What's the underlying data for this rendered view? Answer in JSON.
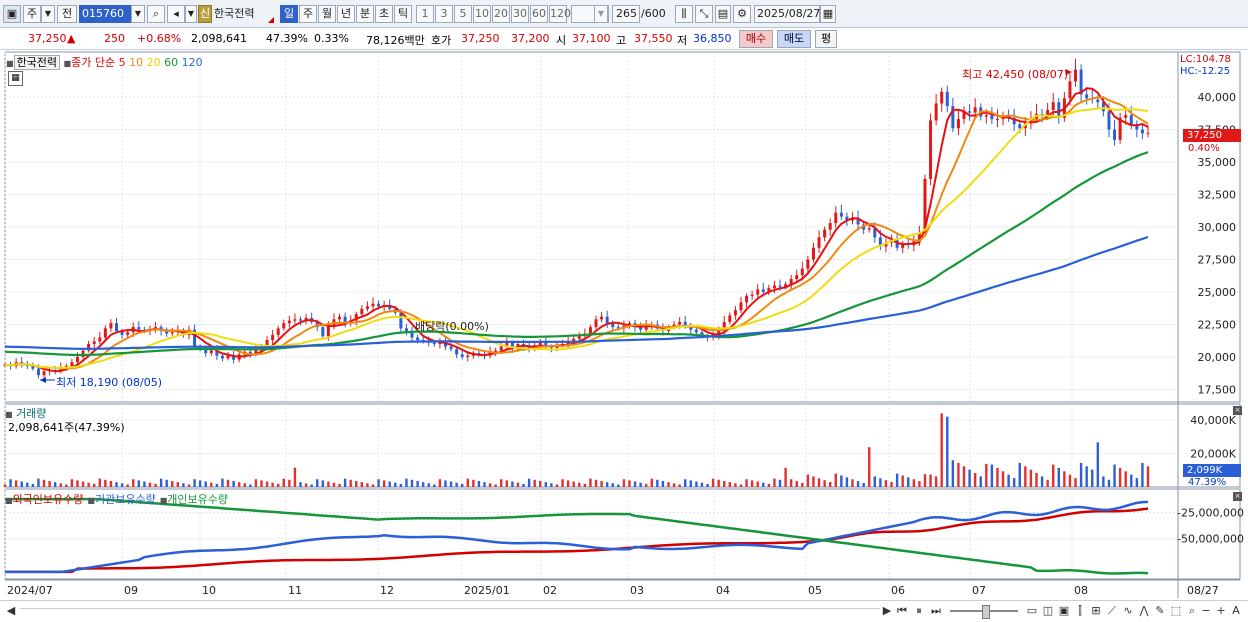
{
  "toolbar": {
    "period_main": "주",
    "market": "전",
    "code": "015760",
    "name_badge": "신",
    "name": "한국전력",
    "periods": [
      "일",
      "주",
      "월",
      "년",
      "분",
      "초",
      "틱"
    ],
    "selected_period": "일",
    "intervals": [
      "1",
      "3",
      "5",
      "10",
      "20",
      "30",
      "60",
      "120"
    ],
    "count": "265",
    "count_max": "/600",
    "date": "2025/08/27"
  },
  "quote": {
    "price": "37,250",
    "direction": "▲",
    "change": "250",
    "change_pct": "+0.68%",
    "volume": "2,098,641",
    "turnover_pct": "47.39%",
    "ratio": "0.33%",
    "amount": "78,126백만",
    "bid_label": "호가",
    "bid": "37,250",
    "ask": "37,200",
    "open_label": "시",
    "open": "37,100",
    "high_label": "고",
    "high": "37,550",
    "low_label": "저",
    "low": "36,850",
    "buy_label": "매수",
    "sell_label": "매도",
    "eval_label": "평"
  },
  "price_panel": {
    "name": "한국전력",
    "series_label": "종가 단순",
    "ma_labels": [
      {
        "label": "5",
        "color": "#e81010"
      },
      {
        "label": "10",
        "color": "#ee8a10"
      },
      {
        "label": "20",
        "color": "#e6d400"
      },
      {
        "label": "60",
        "color": "#16963a"
      },
      {
        "label": "120",
        "color": "#2a6cd6"
      }
    ],
    "lc": "LC:104.78",
    "hc": "HC:-12.25",
    "y_ticks": [
      "40,000",
      "37,500",
      "35,000",
      "32,500",
      "30,000",
      "27,500",
      "25,000",
      "22,500",
      "20,000",
      "17,500"
    ],
    "y_values": [
      40000,
      37500,
      35000,
      32500,
      30000,
      27500,
      25000,
      22500,
      20000,
      17500
    ],
    "current_label": "37,250",
    "current_value": 37250,
    "current_pct": "0.40%",
    "high_annotation": "최고 42,450 (08/07)",
    "low_annotation": "최저 18,190 (08/05)",
    "dividend_annotation": "배당락(0.00%)"
  },
  "volume_panel": {
    "title": "거래량",
    "value_label": "2,098,641주(47.39%)",
    "y_ticks": [
      "40,000K",
      "20,000K"
    ],
    "y_values": [
      40000,
      20000
    ],
    "current_label": "2,099K",
    "current_value": 2099,
    "current_pct": "47.39%"
  },
  "holdings_panel": {
    "legend": [
      {
        "label": "외국인보유수량",
        "color": "#d40000"
      },
      {
        "label": "기관보유수량",
        "color": "#2a5fd6"
      },
      {
        "label": "개인보유수량",
        "color": "#16963a"
      }
    ],
    "y_ticks": [
      "-25,000,000",
      "-50,000,000"
    ],
    "y_values": [
      -25000000,
      -50000000
    ]
  },
  "x_axis": {
    "labels": [
      "2024/07",
      "09",
      "10",
      "11",
      "12",
      "2025/01",
      "02",
      "03",
      "04",
      "05",
      "06",
      "07",
      "08"
    ],
    "end_label": "08/27"
  },
  "chart_data": {
    "type": "candlestick",
    "symbol": "한국전력",
    "x_range": [
      "2024/07",
      "2025/08/27"
    ],
    "ylim": [
      17000,
      43000
    ],
    "price_closes": [
      19400,
      19300,
      19600,
      19500,
      19300,
      19100,
      18600,
      18900,
      19000,
      18900,
      19200,
      19300,
      19600,
      20000,
      20500,
      21000,
      21200,
      21500,
      22200,
      22600,
      22000,
      21700,
      21900,
      22300,
      22100,
      22000,
      22100,
      22300,
      22000,
      21800,
      21900,
      22000,
      21700,
      22100,
      20800,
      20600,
      20300,
      20500,
      20100,
      19900,
      20100,
      19800,
      20200,
      20400,
      20200,
      20500,
      20800,
      21300,
      21700,
      22200,
      22600,
      22800,
      22900,
      22800,
      23000,
      22700,
      22300,
      21600,
      22400,
      22900,
      23100,
      22600,
      22800,
      23300,
      23700,
      23900,
      24100,
      23900,
      24000,
      23700,
      23400,
      22200,
      21900,
      21500,
      21300,
      21200,
      21100,
      21000,
      21200,
      20800,
      20600,
      20200,
      20000,
      20100,
      20300,
      20200,
      20100,
      20400,
      20500,
      20800,
      21100,
      20600,
      21000,
      20800,
      20600,
      20900,
      21100,
      20800,
      20700,
      20900,
      21000,
      21200,
      21400,
      21600,
      21800,
      22300,
      22900,
      23100,
      22600,
      22300,
      22200,
      22400,
      22600,
      22300,
      22100,
      22400,
      22500,
      22200,
      22000,
      22300,
      22500,
      22700,
      22400,
      22100,
      21900,
      21600,
      21500,
      21700,
      22000,
      22700,
      23200,
      23600,
      24200,
      24700,
      24800,
      25200,
      25000,
      25300,
      25500,
      25400,
      25600,
      26000,
      26300,
      26800,
      27500,
      28400,
      29200,
      29800,
      30300,
      31100,
      30800,
      30500,
      30700,
      30200,
      29800,
      29900,
      29200,
      28500,
      28800,
      29000,
      28400,
      28700,
      28600,
      28900,
      29500,
      33700,
      38200,
      39500,
      40400,
      39300,
      37600,
      38300,
      38900,
      38800,
      39200,
      38500,
      38600,
      38300,
      38300,
      38500,
      38400,
      37900,
      37600,
      38000,
      38300,
      38700,
      38600,
      39000,
      39600,
      38400,
      39900,
      41200,
      42100,
      40200,
      39900,
      39800,
      39600,
      38900,
      37500,
      36700,
      38400,
      38600,
      37900,
      37500,
      37200,
      37250
    ],
    "ma_names": [
      "5",
      "10",
      "20",
      "60",
      "120"
    ],
    "volume_unit": "K shares",
    "volume_last": 2099,
    "volume_spikes": [
      {
        "date": "2025/06/19",
        "value": 44000
      }
    ],
    "holdings_series": [
      "외국인보유수량",
      "기관보유수량",
      "개인보유수량"
    ]
  }
}
